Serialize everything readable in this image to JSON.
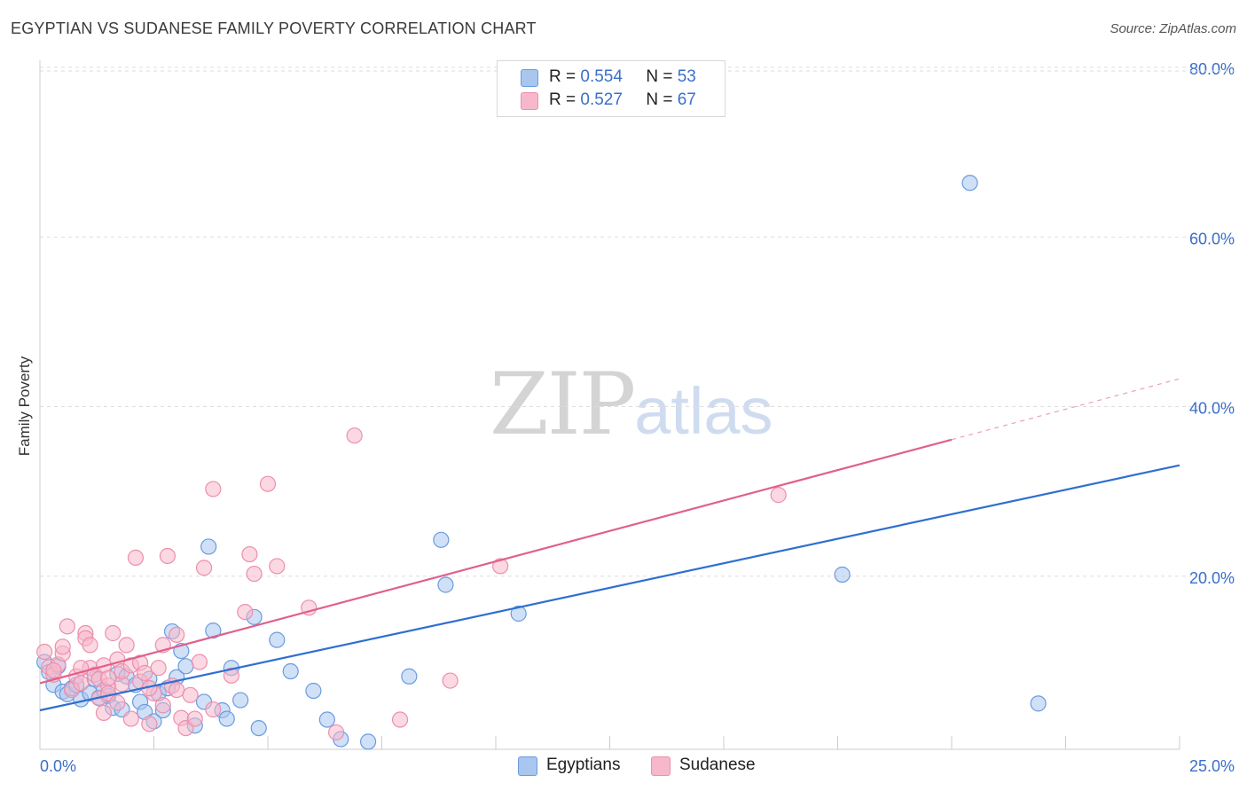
{
  "header": {
    "title": "EGYPTIAN VS SUDANESE FAMILY POVERTY CORRELATION CHART",
    "source": "Source: ZipAtlas.com"
  },
  "watermark": {
    "zip": "ZIP",
    "atlas": "atlas"
  },
  "legend": {
    "rows": [
      {
        "r_label": "R =",
        "r_value": "0.554",
        "n_label": "N =",
        "n_value": "53"
      },
      {
        "r_label": "R =",
        "r_value": "0.527",
        "n_label": "N =",
        "n_value": "67"
      }
    ],
    "bottom": [
      "Egyptians",
      "Sudanese"
    ]
  },
  "colors": {
    "egyptians_fill": "#a9c6ee",
    "egyptians_stroke": "#6a9be0",
    "egyptians_line": "#2f6fd0",
    "sudanese_fill": "#f7b8cb",
    "sudanese_stroke": "#ec8fae",
    "sudanese_line": "#e0608c",
    "grid": "#dddddd",
    "tick_label": "#3a6fc9"
  },
  "chart_data": {
    "type": "scatter",
    "title": "EGYPTIAN VS SUDANESE FAMILY POVERTY CORRELATION CHART",
    "xlabel": "",
    "ylabel": "Family Poverty",
    "xlim": [
      0,
      25
    ],
    "ylim": [
      0,
      80
    ],
    "x_tick_labels": [
      "0.0%",
      "25.0%"
    ],
    "y_ticks": [
      20,
      40,
      60,
      80
    ],
    "y_tick_labels": [
      "20.0%",
      "40.0%",
      "60.0%",
      "80.0%"
    ],
    "grid": true,
    "legend_position": "top-center",
    "series": [
      {
        "name": "Egyptians",
        "r": 0.554,
        "n": 53,
        "trend": {
          "x": [
            0,
            25
          ],
          "y": [
            4.6,
            33.5
          ],
          "solid_until": 25
        },
        "points": [
          [
            0.1,
            10.3
          ],
          [
            0.2,
            9.1
          ],
          [
            0.3,
            7.6
          ],
          [
            0.4,
            9.8
          ],
          [
            0.5,
            6.8
          ],
          [
            0.6,
            6.5
          ],
          [
            0.7,
            7.2
          ],
          [
            0.8,
            7.6
          ],
          [
            0.9,
            5.9
          ],
          [
            1.1,
            6.6
          ],
          [
            1.2,
            8.3
          ],
          [
            1.3,
            6.1
          ],
          [
            1.4,
            7.0
          ],
          [
            1.5,
            6.3
          ],
          [
            1.6,
            4.9
          ],
          [
            1.7,
            8.9
          ],
          [
            1.8,
            4.7
          ],
          [
            1.9,
            8.6
          ],
          [
            2.1,
            7.6
          ],
          [
            2.2,
            5.6
          ],
          [
            2.3,
            4.4
          ],
          [
            2.4,
            8.3
          ],
          [
            2.5,
            3.3
          ],
          [
            2.6,
            6.6
          ],
          [
            2.7,
            4.6
          ],
          [
            2.8,
            7.2
          ],
          [
            2.9,
            13.9
          ],
          [
            3.0,
            8.5
          ],
          [
            3.1,
            11.6
          ],
          [
            3.2,
            9.8
          ],
          [
            3.4,
            2.8
          ],
          [
            3.6,
            5.6
          ],
          [
            3.7,
            23.9
          ],
          [
            3.8,
            14.0
          ],
          [
            4.0,
            4.6
          ],
          [
            4.1,
            3.6
          ],
          [
            4.2,
            9.6
          ],
          [
            4.4,
            5.8
          ],
          [
            4.7,
            15.6
          ],
          [
            4.8,
            2.5
          ],
          [
            5.2,
            12.9
          ],
          [
            5.5,
            9.2
          ],
          [
            6.0,
            6.9
          ],
          [
            6.3,
            3.5
          ],
          [
            6.6,
            1.2
          ],
          [
            7.2,
            0.9
          ],
          [
            8.1,
            8.6
          ],
          [
            8.8,
            24.7
          ],
          [
            8.9,
            19.4
          ],
          [
            10.5,
            16.0
          ],
          [
            17.6,
            20.6
          ],
          [
            20.4,
            66.8
          ],
          [
            21.9,
            5.4
          ]
        ]
      },
      {
        "name": "Sudanese",
        "r": 0.527,
        "n": 67,
        "trend": {
          "x": [
            0,
            25
          ],
          "y": [
            7.8,
            43.7
          ],
          "solid_until": 20
        },
        "points": [
          [
            0.1,
            11.5
          ],
          [
            0.2,
            9.7
          ],
          [
            0.3,
            8.8
          ],
          [
            0.4,
            10.0
          ],
          [
            0.5,
            11.3
          ],
          [
            0.6,
            14.5
          ],
          [
            0.7,
            7.0
          ],
          [
            0.8,
            8.6
          ],
          [
            0.9,
            7.8
          ],
          [
            1.0,
            13.7
          ],
          [
            1.0,
            13.1
          ],
          [
            1.1,
            12.3
          ],
          [
            1.1,
            9.6
          ],
          [
            1.2,
            8.8
          ],
          [
            1.3,
            8.3
          ],
          [
            1.3,
            6.0
          ],
          [
            1.4,
            9.9
          ],
          [
            1.5,
            7.5
          ],
          [
            1.5,
            8.4
          ],
          [
            1.5,
            6.6
          ],
          [
            1.6,
            13.7
          ],
          [
            1.7,
            10.6
          ],
          [
            1.8,
            7.7
          ],
          [
            1.8,
            9.2
          ],
          [
            1.9,
            12.3
          ],
          [
            2.0,
            3.6
          ],
          [
            2.0,
            9.9
          ],
          [
            2.1,
            22.6
          ],
          [
            2.2,
            8.0
          ],
          [
            2.2,
            10.2
          ],
          [
            2.3,
            9.0
          ],
          [
            2.4,
            3.0
          ],
          [
            2.5,
            6.6
          ],
          [
            2.6,
            9.6
          ],
          [
            2.7,
            5.2
          ],
          [
            2.7,
            12.3
          ],
          [
            2.8,
            22.8
          ],
          [
            2.9,
            7.5
          ],
          [
            3.0,
            7.0
          ],
          [
            3.1,
            3.7
          ],
          [
            3.2,
            2.5
          ],
          [
            3.3,
            6.4
          ],
          [
            3.4,
            3.6
          ],
          [
            3.5,
            10.3
          ],
          [
            3.6,
            21.4
          ],
          [
            3.8,
            30.7
          ],
          [
            4.2,
            8.7
          ],
          [
            4.5,
            16.2
          ],
          [
            4.6,
            23.0
          ],
          [
            4.7,
            20.7
          ],
          [
            5.0,
            31.3
          ],
          [
            5.2,
            21.6
          ],
          [
            5.9,
            16.7
          ],
          [
            6.5,
            2.0
          ],
          [
            6.9,
            37.0
          ],
          [
            7.9,
            3.5
          ],
          [
            9.0,
            8.1
          ],
          [
            10.1,
            21.6
          ],
          [
            16.2,
            30.0
          ],
          [
            0.3,
            9.3
          ],
          [
            0.9,
            9.6
          ],
          [
            1.7,
            5.5
          ],
          [
            2.4,
            7.2
          ],
          [
            3.0,
            13.5
          ],
          [
            3.8,
            4.7
          ],
          [
            0.5,
            12.1
          ],
          [
            1.4,
            4.3
          ]
        ]
      }
    ]
  }
}
